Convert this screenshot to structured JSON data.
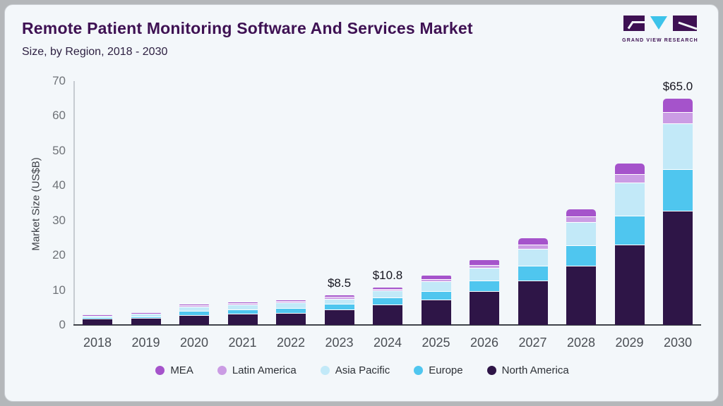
{
  "page": {
    "title": "Remote Patient Monitoring Software And Services Market",
    "subtitle": "Size, by Region, 2018 - 2030"
  },
  "logo": {
    "name": "grand-view-research-logo",
    "text": "GRAND VIEW RESEARCH",
    "dark_color": "#3e1153",
    "accent_color": "#3cc3ea"
  },
  "colors": {
    "card_background": "#f3f7fa",
    "page_background": "#b4b7ba",
    "axis_line": "#c6cbd1",
    "baseline": "#3f434a",
    "tick_text": "#6f7378",
    "segment_gap": "#ffffff"
  },
  "chart_data": {
    "type": "bar",
    "subtype": "stacked-vertical",
    "title": "Remote Patient Monitoring Software And Services Market",
    "subtitle": "Size, by Region, 2018 - 2030",
    "xlabel": "",
    "ylabel": "Market Size (US$B)",
    "ylim": [
      0,
      70
    ],
    "yticks": [
      0,
      10,
      20,
      30,
      40,
      50,
      60,
      70
    ],
    "grid": false,
    "legend_position": "bottom",
    "categories": [
      "2018",
      "2019",
      "2020",
      "2021",
      "2022",
      "2023",
      "2024",
      "2025",
      "2026",
      "2027",
      "2028",
      "2029",
      "2030"
    ],
    "series": [
      {
        "name": "North America",
        "color": "#2e1547",
        "values": [
          1.8,
          2.0,
          2.9,
          3.2,
          3.4,
          4.4,
          5.8,
          7.3,
          9.7,
          12.8,
          17.0,
          23.1,
          32.7
        ]
      },
      {
        "name": "Europe",
        "color": "#4fc6ef",
        "values": [
          0.35,
          0.5,
          1.2,
          1.2,
          1.4,
          1.6,
          2.0,
          2.4,
          3.1,
          4.1,
          5.9,
          8.2,
          12.1
        ]
      },
      {
        "name": "Asia Pacific",
        "color": "#c2e9f8",
        "values": [
          0.45,
          0.7,
          1.2,
          1.5,
          1.6,
          1.5,
          2.1,
          2.9,
          3.6,
          5.0,
          6.7,
          9.6,
          13.1
        ]
      },
      {
        "name": "Latin America",
        "color": "#cb9ce4",
        "values": [
          0.12,
          0.15,
          0.3,
          0.3,
          0.4,
          0.6,
          0.4,
          0.55,
          0.8,
          1.2,
          1.6,
          2.4,
          3.2
        ]
      },
      {
        "name": "MEA",
        "color": "#a553cb",
        "values": [
          0.08,
          0.1,
          0.2,
          0.2,
          0.25,
          0.4,
          0.5,
          1.0,
          1.5,
          1.8,
          2.0,
          3.1,
          3.9
        ]
      }
    ],
    "totals": [
      2.8,
      3.45,
      5.8,
      6.4,
      7.05,
      8.5,
      10.8,
      14.15,
      18.7,
      24.9,
      33.2,
      46.4,
      65.0
    ],
    "annotations": [
      {
        "category": "2023",
        "label": "$8.5"
      },
      {
        "category": "2024",
        "label": "$10.8"
      },
      {
        "category": "2030",
        "label": "$65.0"
      }
    ],
    "legend": [
      {
        "label": "MEA",
        "color": "#a553cb"
      },
      {
        "label": "Latin America",
        "color": "#cb9ce4"
      },
      {
        "label": "Asia Pacific",
        "color": "#c2e9f8"
      },
      {
        "label": "Europe",
        "color": "#4fc6ef"
      },
      {
        "label": "North America",
        "color": "#2e1547"
      }
    ]
  }
}
